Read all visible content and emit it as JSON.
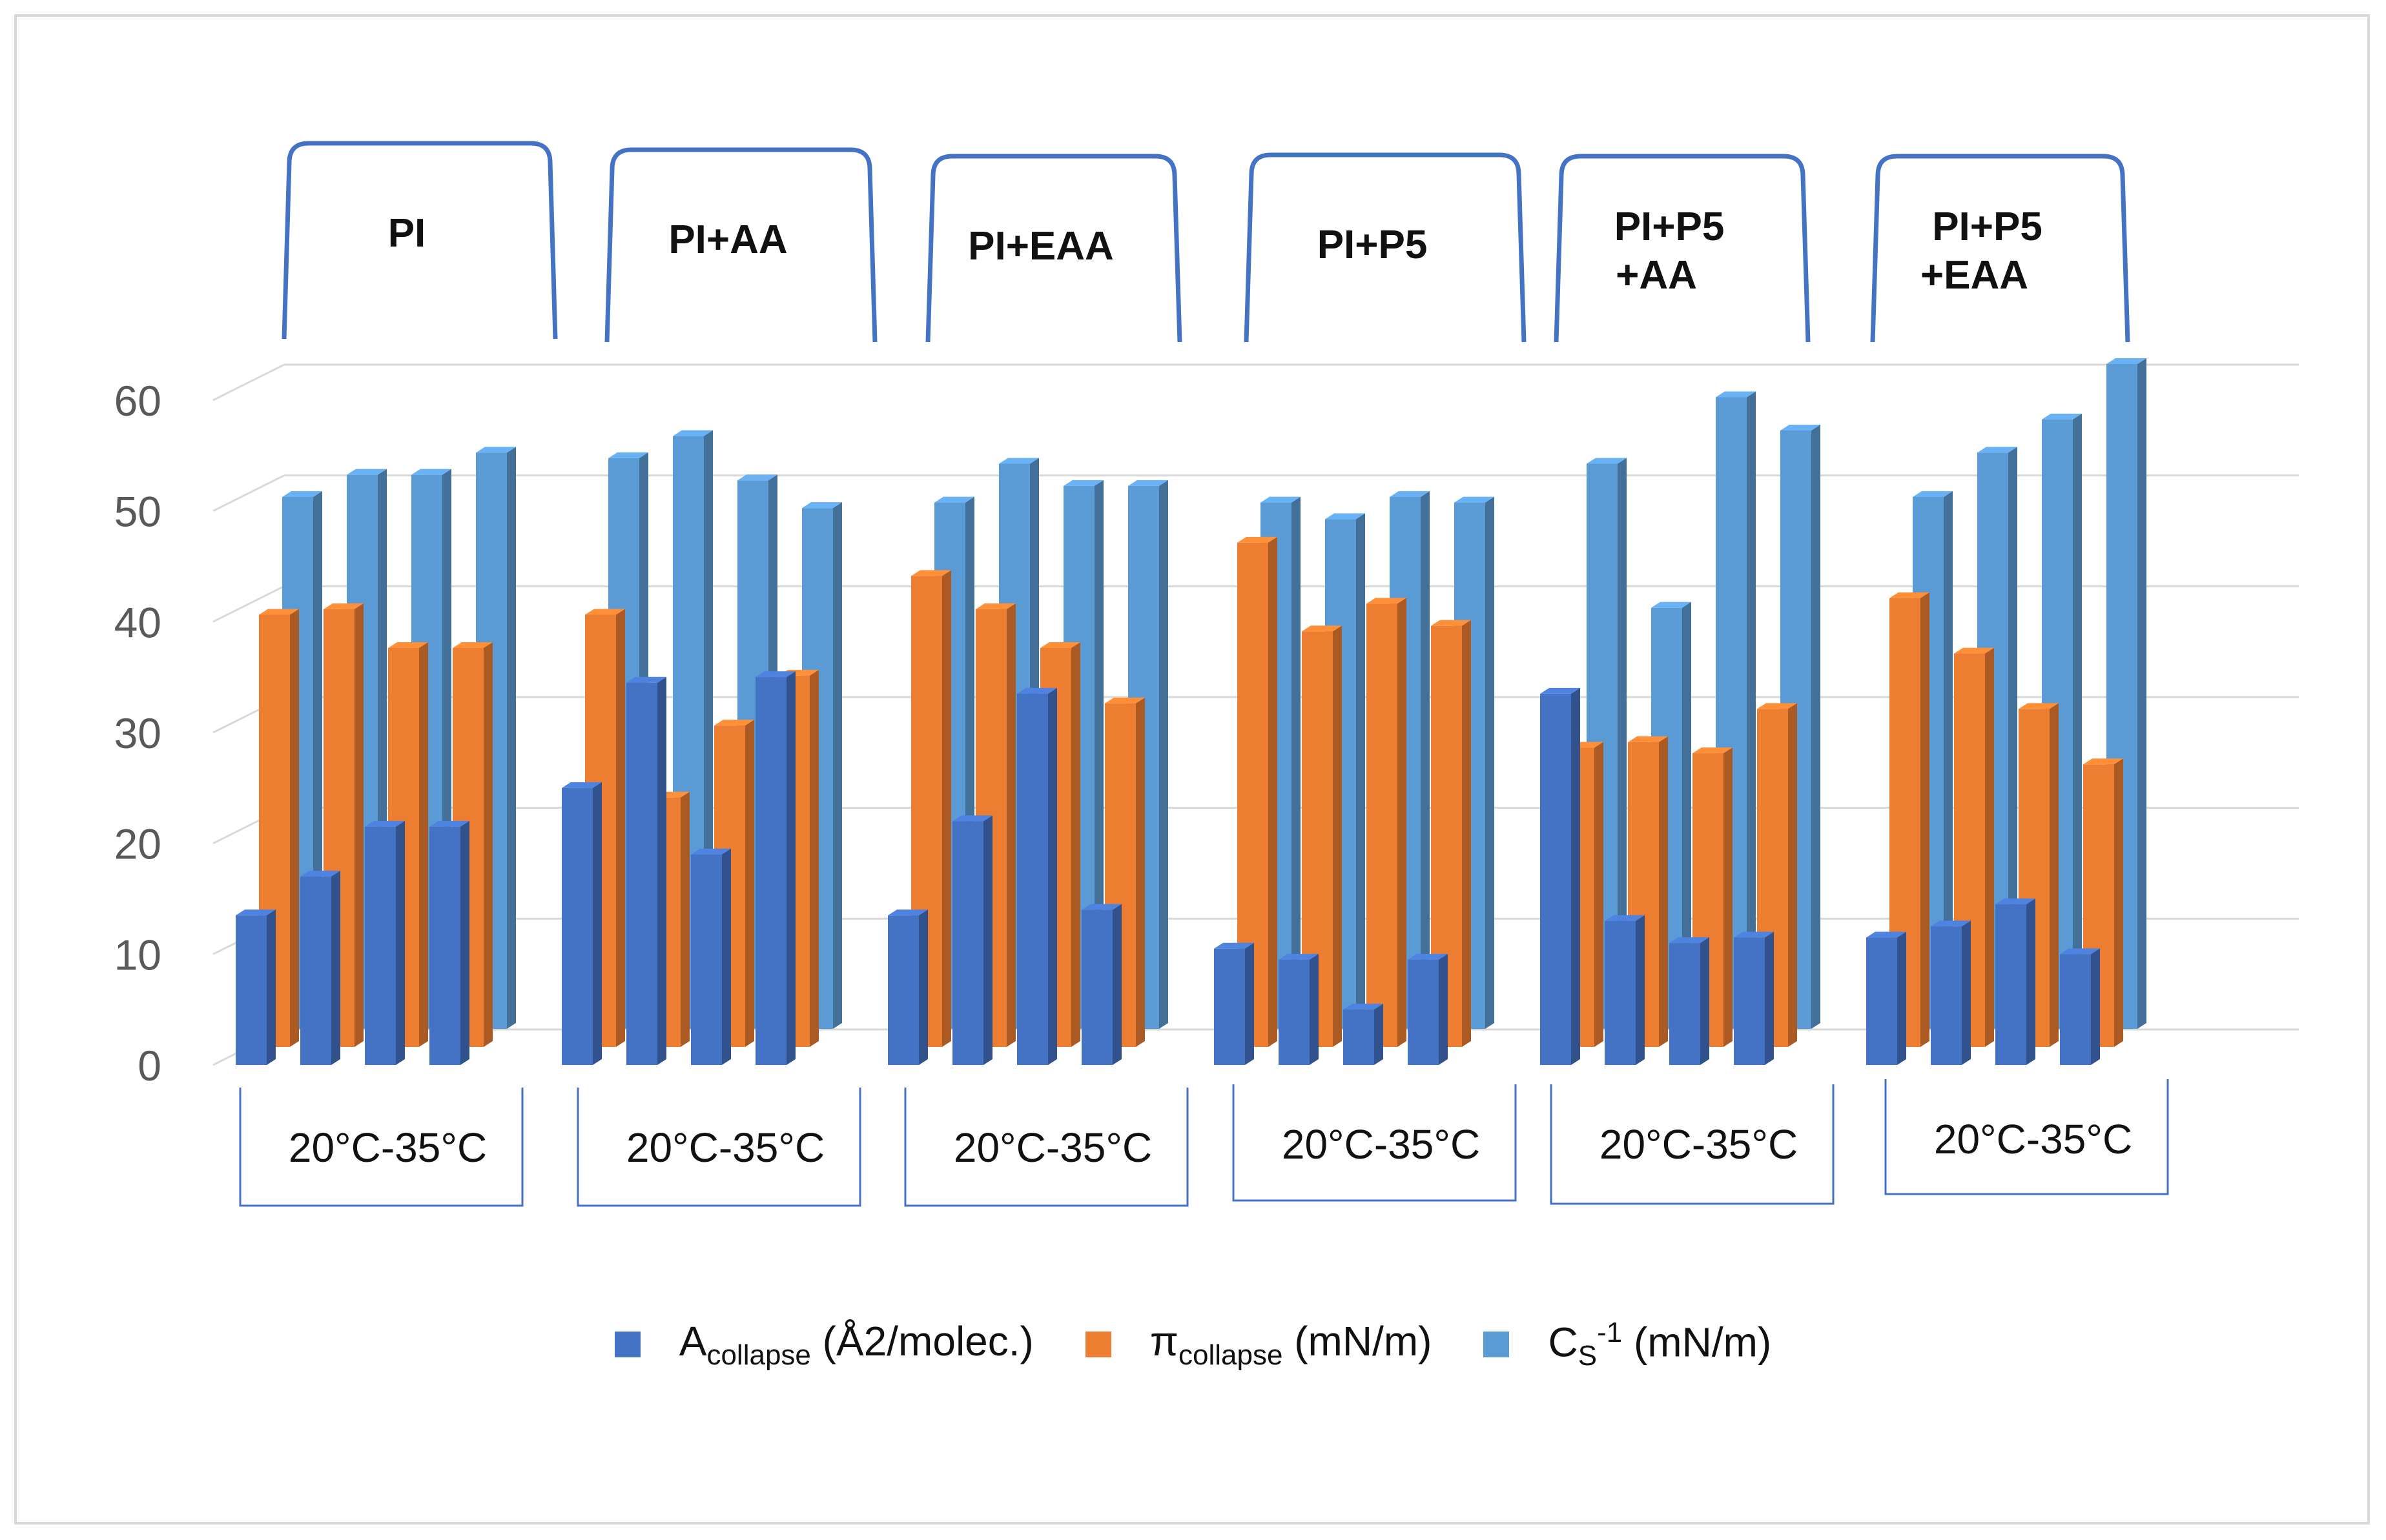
{
  "chart_data": {
    "type": "bar",
    "subtype": "3d-clustered-column",
    "title": "",
    "xlabel": "",
    "ylabel": "",
    "ylim": [
      0,
      60
    ],
    "yticks": [
      "0",
      "10",
      "20",
      "30",
      "40",
      "50",
      "60"
    ],
    "grid": true,
    "legend_position": "bottom",
    "groups": [
      {
        "label": "PI",
        "temperature_label": "20°C-35°C"
      },
      {
        "label": "PI+AA",
        "temperature_label": "20°C-35°C"
      },
      {
        "label": "PI+EAA",
        "temperature_label": "20°C-35°C"
      },
      {
        "label": "PI+P5",
        "temperature_label": "20°C-35°C"
      },
      {
        "label_line1": "PI+P5",
        "label_line2": "+AA",
        "temperature_label": "20°C-35°C"
      },
      {
        "label_line1": "PI+P5",
        "label_line2": "+EAA",
        "temperature_label": "20°C-35°C"
      }
    ],
    "series": [
      {
        "name": "Acollapse (Å2/molec.)",
        "color": "#4472C4",
        "values": [
          13.5,
          17,
          21.5,
          21.5,
          25,
          34.5,
          19,
          35,
          13.5,
          22,
          33.5,
          14,
          10.5,
          9.5,
          5,
          9.5,
          33.5,
          13,
          11,
          11.5,
          11.5,
          12.5,
          14.5,
          10
        ]
      },
      {
        "name": "πcollapse (mN/m)",
        "color": "#ED7D31",
        "values": [
          39,
          39.5,
          36,
          36,
          39,
          22.5,
          29,
          33.5,
          42.5,
          39.5,
          36,
          31,
          45.5,
          37.5,
          40,
          38,
          27,
          27.5,
          26.5,
          30.5,
          40.5,
          35.5,
          30.5,
          25.5
        ]
      },
      {
        "name": "CS-1 (mN/m)",
        "color": "#5B9BD5",
        "values": [
          48,
          50,
          50,
          52,
          51.5,
          53.5,
          49.5,
          47,
          47.5,
          51,
          49,
          49,
          47.5,
          46,
          48,
          47.5,
          51,
          38,
          57,
          54,
          48,
          52,
          55,
          60
        ]
      }
    ]
  },
  "legend": {
    "item1": {
      "main": "A",
      "sub": "collapse",
      "rest": " (Å2/molec.)",
      "color": "#4472C4"
    },
    "item2": {
      "main": "π",
      "sub": "collapse",
      "rest": " (mN/m)",
      "color": "#ED7D31"
    },
    "item3": {
      "main": "C",
      "sub": "S",
      "sup": "-1",
      "rest": " (mN/m)",
      "color": "#5B9BD5"
    }
  }
}
